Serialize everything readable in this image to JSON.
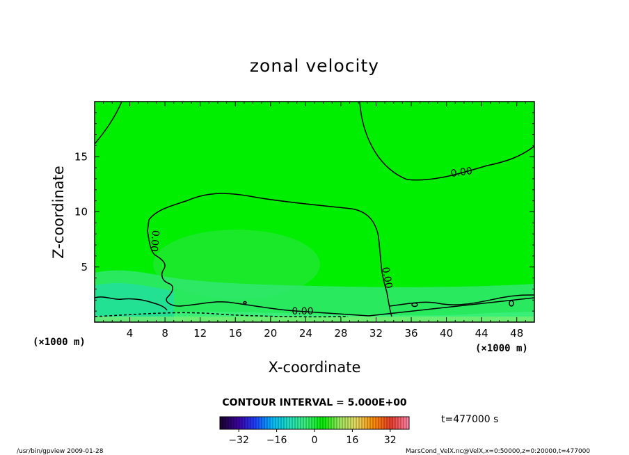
{
  "chart_data": {
    "type": "heatmap",
    "title": "zonal velocity",
    "xlabel": "X-coordinate",
    "ylabel": "Z-coordinate",
    "x_unit": "(×1000 m)",
    "y_unit": "(×1000 m)",
    "xlim": [
      0,
      50
    ],
    "ylim": [
      0,
      20
    ],
    "x_ticks": [
      4,
      8,
      12,
      16,
      20,
      24,
      28,
      32,
      36,
      40,
      44,
      48
    ],
    "y_ticks": [
      5,
      10,
      15
    ],
    "contour_interval_label": "CONTOUR INTERVAL = 5.000E+00",
    "contour_labels": [
      "0.00",
      "0.00",
      "0.00",
      "0.00"
    ],
    "colorbar": {
      "min": -40,
      "max": 40,
      "ticks": [
        -32,
        -16,
        0,
        16,
        32
      ],
      "colors": [
        "#1a0033",
        "#3b00a0",
        "#1f3fff",
        "#00b8ff",
        "#20e0c0",
        "#3cf07a",
        "#00ee00",
        "#9ee860",
        "#e8d860",
        "#ff8c00",
        "#e83c2c",
        "#ff7fa0"
      ]
    },
    "time_label": "t=477000 s",
    "field_colors": {
      "background": "#00ee00",
      "lower_layer": "#3cf07a",
      "bottom_layer": "#20e0a0",
      "upper_band": "#40e850"
    }
  },
  "footer": {
    "left": "/usr/bin/gpview   2009-01-28",
    "right": "MarsCond_VelX.nc@VelX,x=0:50000,z=0:20000,t=477000"
  }
}
